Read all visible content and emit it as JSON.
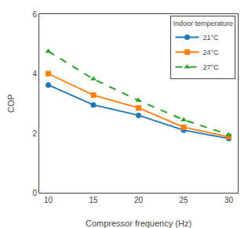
{
  "chart_data": {
    "type": "line",
    "x": [
      10,
      15,
      20,
      25,
      30
    ],
    "series": [
      {
        "name": "21°C",
        "values": [
          3.62,
          2.95,
          2.6,
          2.1,
          1.82
        ],
        "marker": "circle",
        "line_style": "solid"
      },
      {
        "name": "24°C",
        "values": [
          4.0,
          3.28,
          2.85,
          2.2,
          1.88
        ],
        "marker": "square",
        "line_style": "solid"
      },
      {
        "name": "27°C",
        "values": [
          4.75,
          3.82,
          3.1,
          2.45,
          1.95
        ],
        "marker": "triangle-up",
        "line_style": "dash"
      }
    ],
    "xlabel": "Compressor frequency (Hz)",
    "ylabel": "COP",
    "legend_title": "Indoor temperature",
    "legend": "upper right",
    "grid": false,
    "xlim": [
      9,
      31
    ],
    "ylim": [
      0,
      6
    ],
    "xticks": [
      10,
      15,
      20,
      25,
      30
    ],
    "yticks": [
      0,
      2,
      4,
      6
    ]
  }
}
